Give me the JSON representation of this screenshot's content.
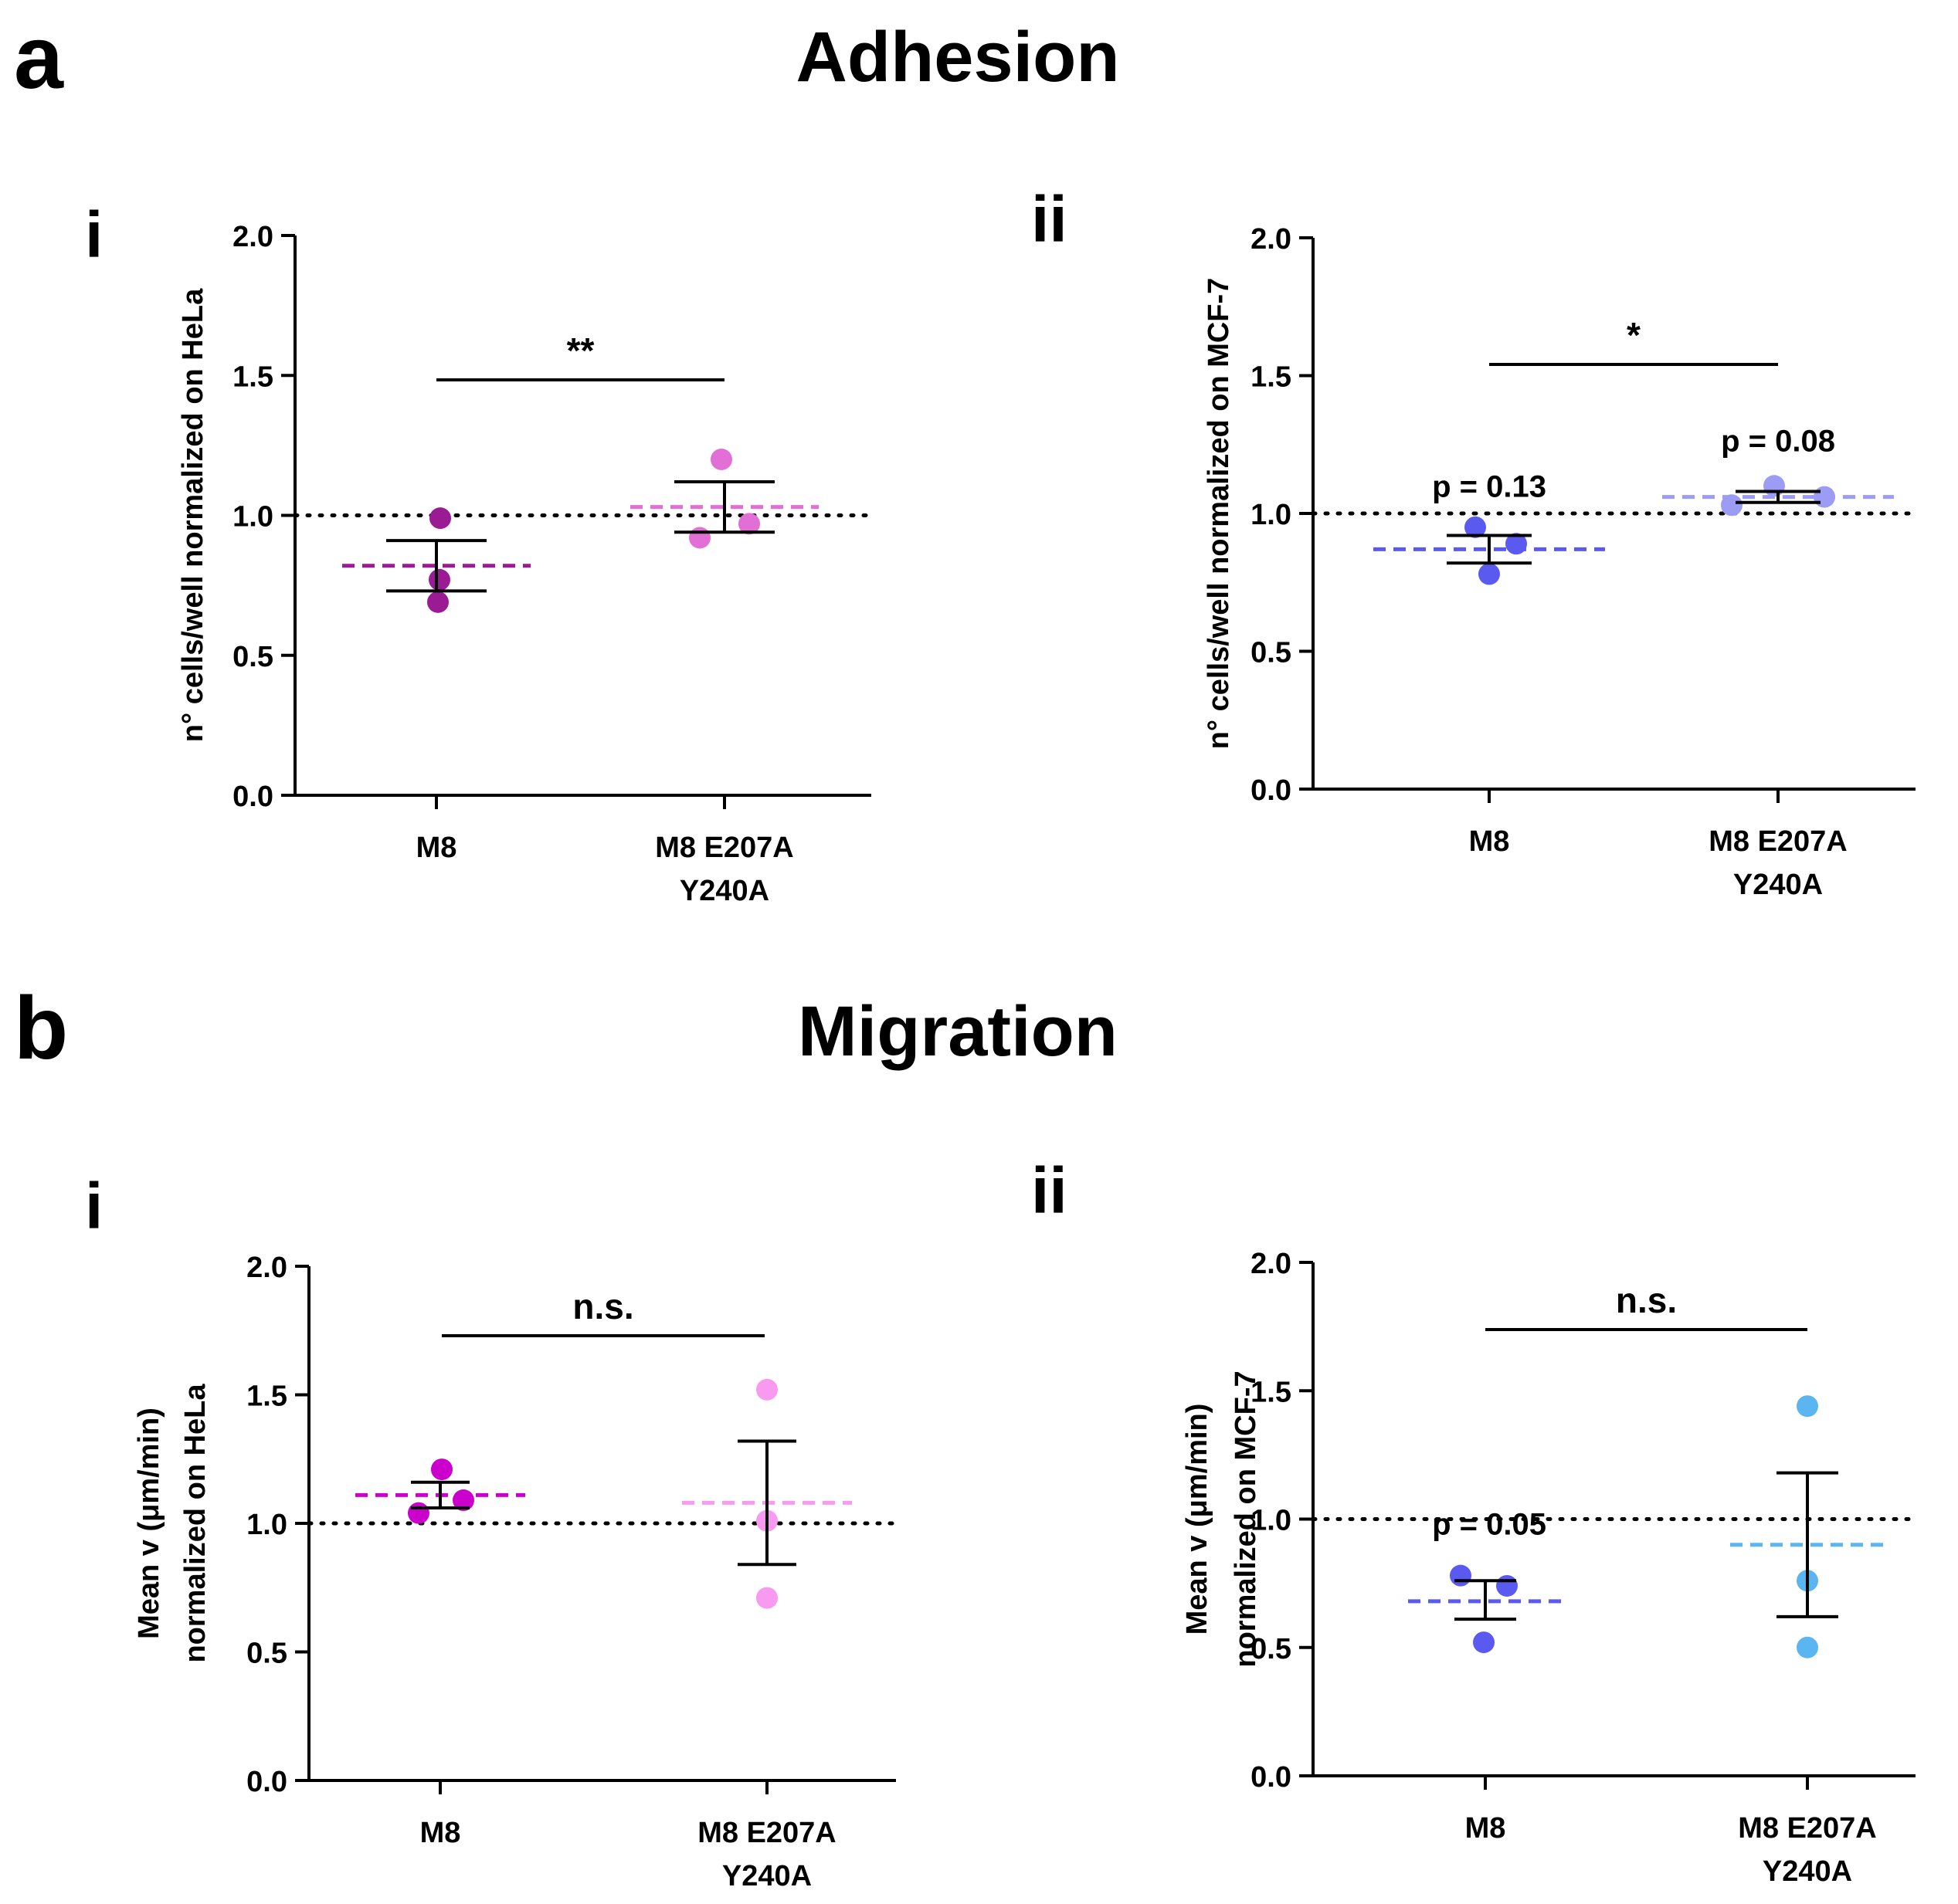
{
  "figure": {
    "panel_a_letter": "a",
    "panel_b_letter": "b",
    "adhesion_title": "Adhesion",
    "migration_title": "Migration"
  },
  "chart_data": [
    {
      "id": "a-i",
      "type": "scatter",
      "subpanel": "i",
      "ylabel": [
        "n° cells/well normalized on HeLa"
      ],
      "ylim": [
        0,
        2
      ],
      "yticks": [
        "0.0",
        "0.5",
        "1.0",
        "1.5",
        "2.0"
      ],
      "yticks_values": [
        0,
        0.5,
        1,
        1.5,
        2
      ],
      "categories": [
        [
          "M8"
        ],
        [
          "M8 E207A",
          "Y240A"
        ]
      ],
      "reference_line": 1.0,
      "significance": "**",
      "groups": [
        {
          "name": "M8",
          "points": [
            0.99,
            0.77,
            0.69
          ],
          "mean": 0.82,
          "sem_low": 0.73,
          "sem_high": 0.91,
          "color": "#9b1b95",
          "annotation": ""
        },
        {
          "name": "M8 E207A Y240A",
          "points": [
            1.2,
            0.92,
            0.97
          ],
          "mean": 1.03,
          "sem_low": 0.94,
          "sem_high": 1.12,
          "color": "#e26fd6",
          "annotation": ""
        }
      ]
    },
    {
      "id": "a-ii",
      "type": "scatter",
      "subpanel": "ii",
      "ylabel": [
        "n° cells/well normalized on MCF-7"
      ],
      "ylim": [
        0,
        2
      ],
      "yticks": [
        "0.0",
        "0.5",
        "1.0",
        "1.5",
        "2.0"
      ],
      "yticks_values": [
        0,
        0.5,
        1,
        1.5,
        2
      ],
      "categories": [
        [
          "M8"
        ],
        [
          "M8 E207A",
          "Y240A"
        ]
      ],
      "reference_line": 1.0,
      "significance": "*",
      "groups": [
        {
          "name": "M8",
          "points": [
            0.95,
            0.89,
            0.78
          ],
          "mean": 0.87,
          "sem_low": 0.82,
          "sem_high": 0.92,
          "color": "#5a5af0",
          "annotation": "p = 0.13"
        },
        {
          "name": "M8 E207A Y240A",
          "points": [
            1.03,
            1.1,
            1.06
          ],
          "mean": 1.06,
          "sem_low": 1.04,
          "sem_high": 1.08,
          "color": "#9c9cf5",
          "annotation": "p = 0.08"
        }
      ]
    },
    {
      "id": "b-i",
      "type": "scatter",
      "subpanel": "i",
      "ylabel": [
        "Mean v (μm/min)",
        "normalized on HeLa"
      ],
      "ylim": [
        0,
        2
      ],
      "yticks": [
        "0.0",
        "0.5",
        "1.0",
        "1.5",
        "2.0"
      ],
      "yticks_values": [
        0,
        0.5,
        1,
        1.5,
        2
      ],
      "categories": [
        [
          "M8"
        ],
        [
          "M8 E207A",
          "Y240A"
        ]
      ],
      "reference_line": 1.0,
      "significance": "n.s.",
      "groups": [
        {
          "name": "M8",
          "points": [
            1.21,
            1.04,
            1.09
          ],
          "mean": 1.11,
          "sem_low": 1.06,
          "sem_high": 1.16,
          "color": "#cc00cc",
          "annotation": ""
        },
        {
          "name": "M8 E207A Y240A",
          "points": [
            1.52,
            1.01,
            0.71
          ],
          "mean": 1.08,
          "sem_low": 0.84,
          "sem_high": 1.32,
          "color": "#f79af0",
          "annotation": ""
        }
      ]
    },
    {
      "id": "b-ii",
      "type": "scatter",
      "subpanel": "ii",
      "ylabel": [
        "Mean v (μm/min)",
        "normalized on MCF-7"
      ],
      "ylim": [
        0,
        2
      ],
      "yticks": [
        "0.0",
        "0.5",
        "1.0",
        "1.5",
        "2.0"
      ],
      "yticks_values": [
        0,
        0.5,
        1,
        1.5,
        2
      ],
      "categories": [
        [
          "M8"
        ],
        [
          "M8 E207A",
          "Y240A"
        ]
      ],
      "reference_line": 1.0,
      "significance": "n.s.",
      "groups": [
        {
          "name": "M8",
          "points": [
            0.78,
            0.74,
            0.52
          ],
          "mean": 0.68,
          "sem_low": 0.61,
          "sem_high": 0.76,
          "color": "#5a5af0",
          "annotation": "p = 0.05"
        },
        {
          "name": "M8 E207A Y240A",
          "points": [
            1.44,
            0.76,
            0.5
          ],
          "mean": 0.9,
          "sem_low": 0.62,
          "sem_high": 1.18,
          "color": "#5bb5f0",
          "annotation": ""
        }
      ]
    }
  ]
}
